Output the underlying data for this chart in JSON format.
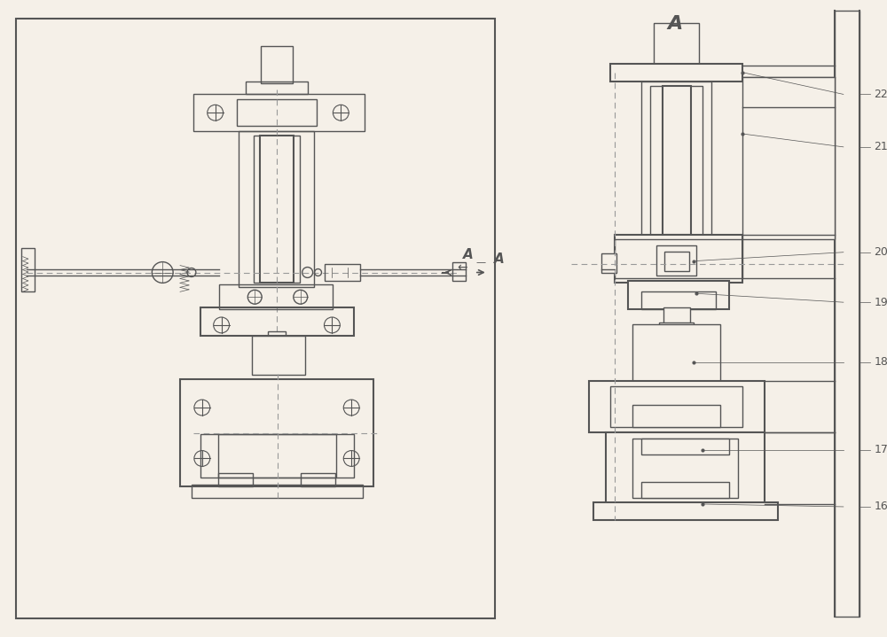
{
  "bg_color": "#f5f0e8",
  "line_color": "#555555",
  "dash_color": "#888888",
  "line_width": 1.0,
  "thin_line": 0.5,
  "thick_line": 1.5,
  "labels": [
    "16",
    "17",
    "18",
    "19",
    "20",
    "21",
    "22"
  ],
  "section_label": "A",
  "arrow_label": "A"
}
